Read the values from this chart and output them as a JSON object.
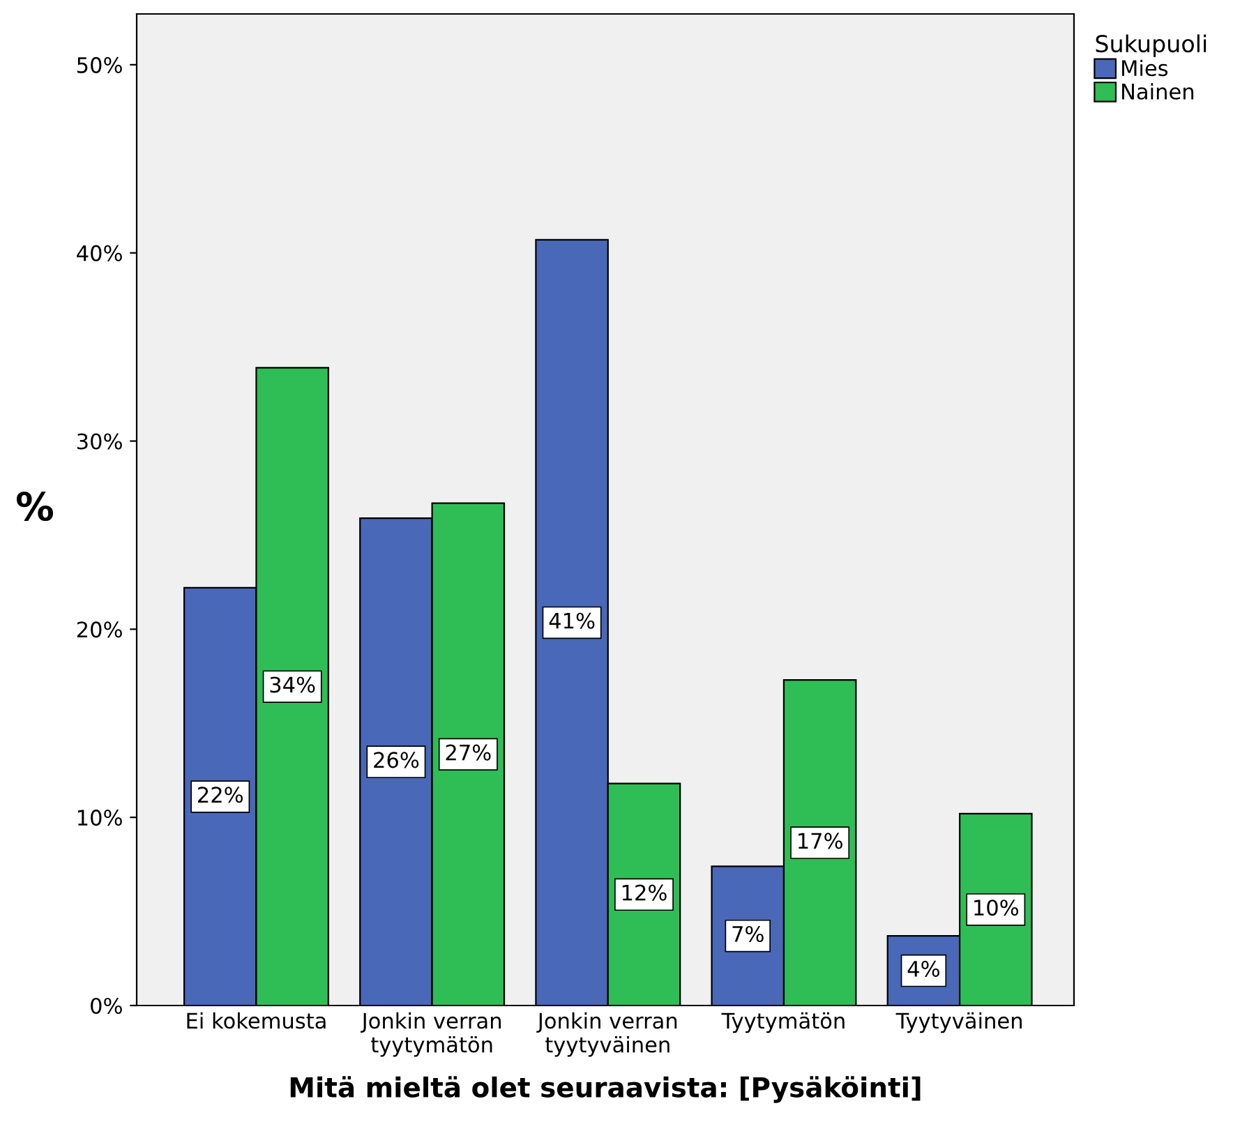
{
  "chart_data": {
    "type": "bar",
    "xlabel": "Mitä mieltä olet seuraavista: [Pysäköinti]",
    "ylabel": "%",
    "legend_title": "Sukupuoli",
    "legend": "top right",
    "categories": [
      "Ei kokemusta",
      "Jonkin verran\ntyytymätön",
      "Jonkin verran\ntyytyväinen",
      "Tyytymätön",
      "Tyytyväinen"
    ],
    "series": [
      {
        "name": "Mies",
        "color": "#4a68b8",
        "values": [
          22.2,
          25.9,
          40.7,
          7.4,
          3.7
        ],
        "value_labels": [
          "22%",
          "26%",
          "41%",
          "7%",
          "4%"
        ]
      },
      {
        "name": "Nainen",
        "color": "#2fbd55",
        "values": [
          33.9,
          26.7,
          11.8,
          17.3,
          10.2
        ],
        "value_labels": [
          "34%",
          "27%",
          "12%",
          "17%",
          "10%"
        ]
      }
    ],
    "ylim": [
      0,
      52.7
    ],
    "yticks": [
      {
        "value": 0,
        "label": "0%"
      },
      {
        "value": 10,
        "label": "10%"
      },
      {
        "value": 20,
        "label": "20%"
      },
      {
        "value": 30,
        "label": "30%"
      },
      {
        "value": 40,
        "label": "40%"
      },
      {
        "value": 50,
        "label": "50%"
      }
    ],
    "grid": false
  }
}
